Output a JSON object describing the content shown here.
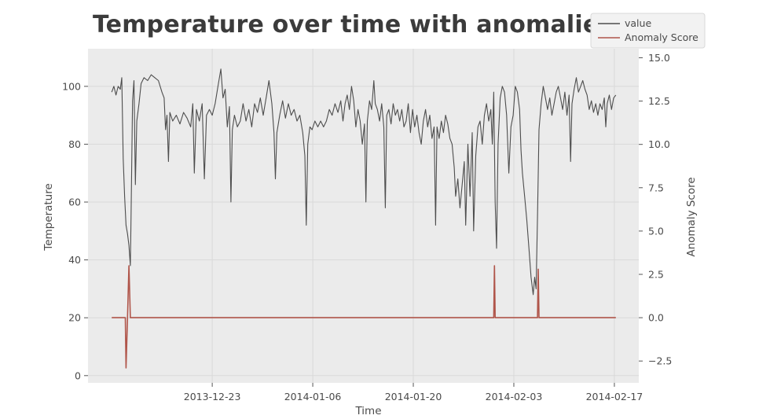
{
  "chart_data": {
    "type": "line",
    "title": "Temperature over time with anomalies",
    "xlabel": "Time",
    "ylabel": "Temperature",
    "y2label": "Anomaly Score",
    "x_tick_labels": [
      "2013-12-23",
      "2014-01-06",
      "2014-01-20",
      "2014-02-03",
      "2014-02-17"
    ],
    "x_tick_days": [
      14,
      28,
      42,
      56,
      70
    ],
    "x_range_days": [
      -3.3,
      73.4
    ],
    "ylim": [
      -2.5,
      113
    ],
    "y_ticks": [
      0,
      20,
      40,
      60,
      80,
      100
    ],
    "y2lim": [
      -3.76,
      15.52
    ],
    "y2_ticks": [
      -2.5,
      0.0,
      2.5,
      5.0,
      7.5,
      10.0,
      12.5,
      15.0
    ],
    "y2_tick_labels": [
      "−2.5",
      "0.0",
      "2.5",
      "5.0",
      "7.5",
      "10.0",
      "12.5",
      "15.0"
    ],
    "grid": true,
    "legend_position": "top-right",
    "series": [
      {
        "name": "value",
        "axis": "left",
        "color": "#4d4d4d",
        "points": [
          [
            0.0,
            98
          ],
          [
            0.3,
            100
          ],
          [
            0.6,
            97
          ],
          [
            0.9,
            100
          ],
          [
            1.2,
            99
          ],
          [
            1.4,
            103
          ],
          [
            1.6,
            75
          ],
          [
            1.8,
            62
          ],
          [
            2.0,
            52
          ],
          [
            2.2,
            49
          ],
          [
            2.4,
            45
          ],
          [
            2.6,
            38
          ],
          [
            2.7,
            55
          ],
          [
            2.9,
            95
          ],
          [
            3.1,
            102
          ],
          [
            3.3,
            66
          ],
          [
            3.5,
            88
          ],
          [
            3.8,
            94
          ],
          [
            4.1,
            101
          ],
          [
            4.5,
            103
          ],
          [
            5.0,
            102
          ],
          [
            5.5,
            104
          ],
          [
            6.0,
            103
          ],
          [
            6.5,
            102
          ],
          [
            7.0,
            98
          ],
          [
            7.3,
            96
          ],
          [
            7.5,
            85
          ],
          [
            7.7,
            90
          ],
          [
            7.9,
            74
          ],
          [
            8.1,
            91
          ],
          [
            8.5,
            88
          ],
          [
            9.0,
            90
          ],
          [
            9.5,
            87
          ],
          [
            10.0,
            91
          ],
          [
            10.5,
            89
          ],
          [
            11.0,
            86
          ],
          [
            11.3,
            94
          ],
          [
            11.5,
            70
          ],
          [
            11.8,
            92
          ],
          [
            12.2,
            88
          ],
          [
            12.6,
            94
          ],
          [
            12.9,
            68
          ],
          [
            13.2,
            90
          ],
          [
            13.6,
            92
          ],
          [
            14.0,
            90
          ],
          [
            14.4,
            94
          ],
          [
            14.8,
            100
          ],
          [
            15.2,
            106
          ],
          [
            15.5,
            96
          ],
          [
            15.8,
            99
          ],
          [
            16.1,
            86
          ],
          [
            16.4,
            93
          ],
          [
            16.6,
            60
          ],
          [
            16.8,
            85
          ],
          [
            17.1,
            90
          ],
          [
            17.5,
            86
          ],
          [
            17.9,
            88
          ],
          [
            18.3,
            94
          ],
          [
            18.7,
            88
          ],
          [
            19.1,
            92
          ],
          [
            19.5,
            86
          ],
          [
            19.9,
            94
          ],
          [
            20.3,
            91
          ],
          [
            20.7,
            96
          ],
          [
            21.1,
            90
          ],
          [
            21.5,
            96
          ],
          [
            21.9,
            102
          ],
          [
            22.3,
            94
          ],
          [
            22.6,
            84
          ],
          [
            22.8,
            68
          ],
          [
            23.0,
            84
          ],
          [
            23.4,
            90
          ],
          [
            23.8,
            95
          ],
          [
            24.2,
            89
          ],
          [
            24.6,
            94
          ],
          [
            25.0,
            90
          ],
          [
            25.4,
            92
          ],
          [
            25.8,
            88
          ],
          [
            26.2,
            90
          ],
          [
            26.6,
            84
          ],
          [
            26.9,
            76
          ],
          [
            27.1,
            52
          ],
          [
            27.3,
            80
          ],
          [
            27.6,
            86
          ],
          [
            27.9,
            85
          ],
          [
            28.3,
            88
          ],
          [
            28.7,
            86
          ],
          [
            29.1,
            88
          ],
          [
            29.5,
            86
          ],
          [
            29.9,
            88
          ],
          [
            30.3,
            92
          ],
          [
            30.7,
            90
          ],
          [
            31.1,
            94
          ],
          [
            31.5,
            91
          ],
          [
            31.9,
            95
          ],
          [
            32.2,
            88
          ],
          [
            32.5,
            94
          ],
          [
            32.8,
            97
          ],
          [
            33.1,
            92
          ],
          [
            33.4,
            100
          ],
          [
            33.7,
            95
          ],
          [
            34.0,
            86
          ],
          [
            34.3,
            92
          ],
          [
            34.6,
            88
          ],
          [
            34.9,
            80
          ],
          [
            35.2,
            87
          ],
          [
            35.4,
            60
          ],
          [
            35.6,
            88
          ],
          [
            35.9,
            95
          ],
          [
            36.2,
            92
          ],
          [
            36.5,
            102
          ],
          [
            36.7,
            94
          ],
          [
            37.0,
            92
          ],
          [
            37.3,
            88
          ],
          [
            37.6,
            94
          ],
          [
            37.9,
            86
          ],
          [
            38.1,
            58
          ],
          [
            38.3,
            90
          ],
          [
            38.6,
            92
          ],
          [
            38.9,
            87
          ],
          [
            39.2,
            94
          ],
          [
            39.5,
            90
          ],
          [
            39.8,
            92
          ],
          [
            40.1,
            88
          ],
          [
            40.4,
            92
          ],
          [
            40.7,
            86
          ],
          [
            41.0,
            88
          ],
          [
            41.3,
            94
          ],
          [
            41.6,
            84
          ],
          [
            41.9,
            92
          ],
          [
            42.2,
            86
          ],
          [
            42.5,
            90
          ],
          [
            42.8,
            84
          ],
          [
            43.1,
            80
          ],
          [
            43.4,
            88
          ],
          [
            43.7,
            92
          ],
          [
            44.0,
            86
          ],
          [
            44.3,
            90
          ],
          [
            44.6,
            82
          ],
          [
            44.9,
            86
          ],
          [
            45.1,
            52
          ],
          [
            45.3,
            86
          ],
          [
            45.6,
            82
          ],
          [
            45.9,
            88
          ],
          [
            46.2,
            84
          ],
          [
            46.5,
            90
          ],
          [
            46.8,
            87
          ],
          [
            47.1,
            82
          ],
          [
            47.4,
            80
          ],
          [
            47.7,
            72
          ],
          [
            47.9,
            62
          ],
          [
            48.2,
            68
          ],
          [
            48.5,
            58
          ],
          [
            48.8,
            66
          ],
          [
            49.1,
            74
          ],
          [
            49.3,
            52
          ],
          [
            49.6,
            80
          ],
          [
            49.9,
            62
          ],
          [
            50.2,
            84
          ],
          [
            50.4,
            50
          ],
          [
            50.7,
            76
          ],
          [
            51.0,
            86
          ],
          [
            51.3,
            88
          ],
          [
            51.6,
            80
          ],
          [
            51.9,
            90
          ],
          [
            52.2,
            94
          ],
          [
            52.5,
            88
          ],
          [
            52.8,
            92
          ],
          [
            53.0,
            80
          ],
          [
            53.2,
            98
          ],
          [
            53.4,
            60
          ],
          [
            53.6,
            44
          ],
          [
            53.8,
            80
          ],
          [
            54.1,
            96
          ],
          [
            54.4,
            100
          ],
          [
            54.7,
            98
          ],
          [
            55.0,
            90
          ],
          [
            55.3,
            70
          ],
          [
            55.6,
            86
          ],
          [
            55.9,
            90
          ],
          [
            56.2,
            100
          ],
          [
            56.5,
            98
          ],
          [
            56.8,
            92
          ],
          [
            57.0,
            78
          ],
          [
            57.2,
            70
          ],
          [
            57.5,
            62
          ],
          [
            57.8,
            54
          ],
          [
            58.1,
            44
          ],
          [
            58.4,
            34
          ],
          [
            58.7,
            28
          ],
          [
            58.9,
            34
          ],
          [
            59.1,
            30
          ],
          [
            59.3,
            55
          ],
          [
            59.5,
            85
          ],
          [
            59.8,
            94
          ],
          [
            60.1,
            100
          ],
          [
            60.4,
            96
          ],
          [
            60.7,
            92
          ],
          [
            61.0,
            96
          ],
          [
            61.3,
            90
          ],
          [
            61.6,
            94
          ],
          [
            61.9,
            98
          ],
          [
            62.2,
            100
          ],
          [
            62.5,
            96
          ],
          [
            62.8,
            92
          ],
          [
            63.1,
            98
          ],
          [
            63.4,
            90
          ],
          [
            63.7,
            97
          ],
          [
            63.9,
            74
          ],
          [
            64.1,
            94
          ],
          [
            64.4,
            99
          ],
          [
            64.7,
            103
          ],
          [
            65.0,
            98
          ],
          [
            65.3,
            100
          ],
          [
            65.6,
            102
          ],
          [
            65.9,
            99
          ],
          [
            66.2,
            97
          ],
          [
            66.5,
            92
          ],
          [
            66.8,
            95
          ],
          [
            67.1,
            91
          ],
          [
            67.4,
            94
          ],
          [
            67.7,
            90
          ],
          [
            68.0,
            94
          ],
          [
            68.3,
            92
          ],
          [
            68.6,
            96
          ],
          [
            68.8,
            86
          ],
          [
            69.0,
            94
          ],
          [
            69.3,
            97
          ],
          [
            69.6,
            92
          ],
          [
            69.9,
            96
          ],
          [
            70.2,
            97
          ]
        ]
      },
      {
        "name": "Anomaly Score",
        "axis": "right",
        "color": "#b0554a",
        "points": [
          [
            0.0,
            0
          ],
          [
            1.9,
            0
          ],
          [
            2.0,
            -2.9
          ],
          [
            2.2,
            0
          ],
          [
            2.4,
            3.0
          ],
          [
            2.6,
            0
          ],
          [
            53.2,
            0
          ],
          [
            53.3,
            3.0
          ],
          [
            53.4,
            0
          ],
          [
            59.3,
            0
          ],
          [
            59.4,
            2.8
          ],
          [
            59.5,
            0
          ],
          [
            70.2,
            0
          ]
        ]
      }
    ]
  }
}
